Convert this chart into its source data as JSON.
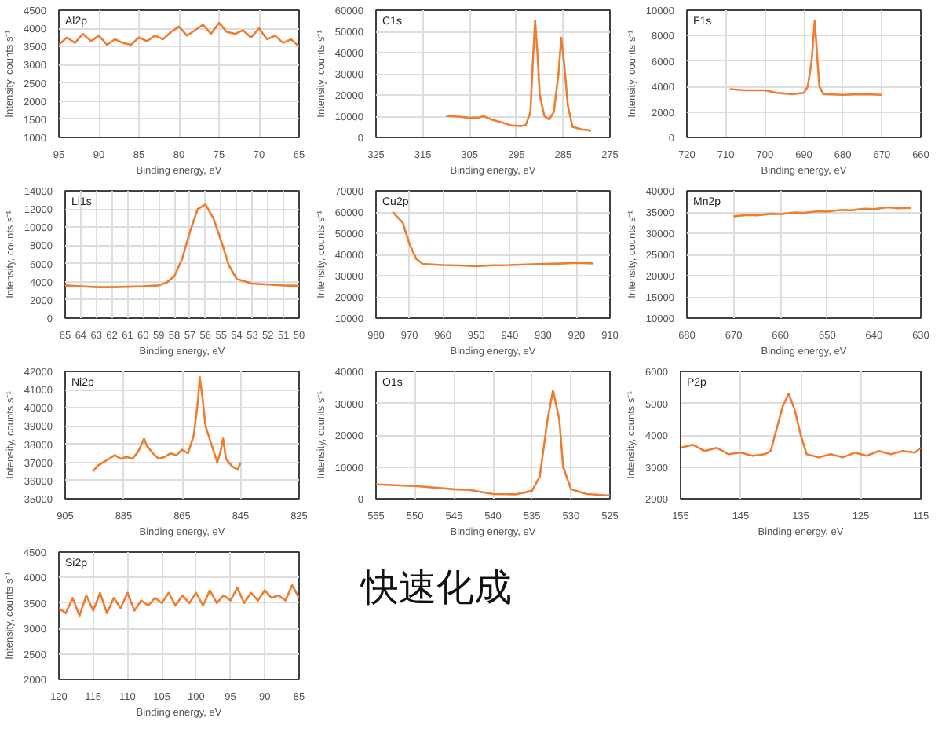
{
  "chart_data": [
    {
      "type": "line",
      "annotations": [
        "Al2p"
      ],
      "xlabel": "Binding energy, eV",
      "ylabel": "Intensity, counts s⁻¹",
      "grid": true,
      "xlim": [
        95,
        65
      ],
      "xticks": [
        95,
        90,
        85,
        80,
        75,
        70,
        65
      ],
      "ylim": [
        1000,
        4500
      ],
      "yticks": [
        1000,
        1500,
        2000,
        2500,
        3000,
        3500,
        4000,
        4500
      ],
      "x": [
        95,
        94,
        93,
        92,
        91,
        90,
        89,
        88,
        87,
        86,
        85,
        84,
        83,
        82,
        81,
        80,
        79,
        78,
        77,
        76,
        75,
        74,
        73,
        72,
        71,
        70,
        69,
        68,
        67,
        66,
        65
      ],
      "series": [
        {
          "color": "#ed7d31",
          "values": [
            3550,
            3750,
            3600,
            3850,
            3650,
            3800,
            3550,
            3700,
            3600,
            3550,
            3750,
            3650,
            3800,
            3700,
            3900,
            4050,
            3800,
            3950,
            4100,
            3850,
            4150,
            3900,
            3850,
            3950,
            3750,
            4000,
            3700,
            3800,
            3600,
            3700,
            3500
          ]
        }
      ]
    },
    {
      "type": "line",
      "annotations": [
        "C1s"
      ],
      "xlabel": "Binding energy, eV",
      "ylabel": "Intensity, counts s⁻¹",
      "grid": true,
      "xlim": [
        325,
        275
      ],
      "xticks": [
        325,
        315,
        305,
        295,
        285,
        275
      ],
      "ylim": [
        0,
        60000
      ],
      "yticks": [
        0,
        10000,
        20000,
        30000,
        40000,
        50000,
        60000
      ],
      "x": [
        310,
        307,
        305,
        303,
        302,
        300,
        298,
        296,
        294,
        293,
        292,
        291.5,
        291,
        290.5,
        290,
        289,
        288,
        287,
        286,
        285.4,
        284.8,
        284,
        283,
        281,
        279
      ],
      "series": [
        {
          "color": "#ed7d31",
          "values": [
            10200,
            9700,
            9200,
            9400,
            10000,
            8200,
            7000,
            5600,
            5400,
            5800,
            12000,
            35000,
            55000,
            40000,
            20000,
            10000,
            8500,
            12000,
            30000,
            47000,
            35000,
            15000,
            5000,
            3800,
            3200
          ]
        }
      ]
    },
    {
      "type": "line",
      "annotations": [
        "F1s"
      ],
      "xlabel": "Binding energy, eV",
      "ylabel": "Intensity, counts s⁻¹",
      "grid": true,
      "xlim": [
        720,
        660
      ],
      "xticks": [
        720,
        710,
        700,
        690,
        680,
        670,
        660
      ],
      "ylim": [
        0,
        10000
      ],
      "yticks": [
        0,
        2000,
        4000,
        6000,
        8000,
        10000
      ],
      "x": [
        709,
        705,
        700,
        697,
        693,
        690,
        689,
        688,
        687.2,
        686.5,
        686,
        685,
        680,
        675,
        670
      ],
      "series": [
        {
          "color": "#ed7d31",
          "values": [
            3800,
            3700,
            3700,
            3500,
            3400,
            3500,
            4000,
            6000,
            9200,
            6000,
            4000,
            3400,
            3350,
            3400,
            3350
          ]
        }
      ]
    },
    {
      "type": "line",
      "annotations": [
        "Li1s"
      ],
      "xlabel": "Binding energy, eV",
      "ylabel": "Intensity, counts s⁻¹",
      "grid": true,
      "xlim": [
        65,
        50
      ],
      "xticks": [
        65,
        64,
        63,
        62,
        61,
        60,
        59,
        58,
        57,
        56,
        55,
        54,
        53,
        52,
        51,
        50
      ],
      "ylim": [
        0,
        14000
      ],
      "yticks": [
        0,
        2000,
        4000,
        6000,
        8000,
        10000,
        12000,
        14000
      ],
      "x": [
        65,
        64,
        63,
        62,
        61,
        60,
        59,
        58.5,
        58,
        57.5,
        57,
        56.5,
        56,
        55.5,
        55,
        54.5,
        54,
        53,
        52,
        51,
        50
      ],
      "series": [
        {
          "color": "#ed7d31",
          "values": [
            3600,
            3500,
            3400,
            3400,
            3450,
            3500,
            3600,
            3900,
            4600,
            6500,
            9500,
            12000,
            12500,
            11000,
            8500,
            5800,
            4300,
            3800,
            3700,
            3600,
            3550
          ]
        }
      ]
    },
    {
      "type": "line",
      "annotations": [
        "Cu2p"
      ],
      "xlabel": "Binding energy, eV",
      "ylabel": "Intensity, counts s⁻¹",
      "grid": true,
      "xlim": [
        980,
        910
      ],
      "xticks": [
        980,
        970,
        960,
        950,
        940,
        930,
        920,
        910
      ],
      "ylim": [
        10000,
        70000
      ],
      "yticks": [
        10000,
        20000,
        30000,
        40000,
        50000,
        60000,
        70000
      ],
      "x": [
        975,
        972,
        970,
        968,
        966,
        960,
        955,
        950,
        945,
        940,
        935,
        930,
        925,
        920,
        915
      ],
      "series": [
        {
          "color": "#ed7d31",
          "values": [
            60000,
            55000,
            45000,
            38000,
            35500,
            35000,
            34800,
            34500,
            34900,
            35000,
            35300,
            35500,
            35700,
            36000,
            35800
          ]
        }
      ]
    },
    {
      "type": "line",
      "annotations": [
        "Mn2p"
      ],
      "xlabel": "Binding energy, eV",
      "ylabel": "Intensity, counts s⁻¹",
      "grid": true,
      "xlim": [
        680,
        630
      ],
      "xticks": [
        680,
        670,
        660,
        650,
        640,
        630
      ],
      "ylim": [
        10000,
        40000
      ],
      "yticks": [
        10000,
        15000,
        20000,
        25000,
        30000,
        35000,
        40000
      ],
      "x": [
        670,
        667,
        665,
        662,
        660,
        657,
        655,
        652,
        650,
        647,
        645,
        642,
        640,
        637,
        635,
        632
      ],
      "series": [
        {
          "color": "#ed7d31",
          "values": [
            34000,
            34300,
            34200,
            34600,
            34500,
            34900,
            34800,
            35200,
            35100,
            35500,
            35400,
            35800,
            35700,
            36100,
            35900,
            36000
          ]
        }
      ]
    },
    {
      "type": "line",
      "annotations": [
        "Ni2p"
      ],
      "xlabel": "Binding energy, eV",
      "ylabel": "Intensity, counts s⁻¹",
      "grid": true,
      "xlim": [
        905,
        825
      ],
      "xticks": [
        905,
        885,
        865,
        845,
        825
      ],
      "ylim": [
        35000,
        42000
      ],
      "yticks": [
        35000,
        36000,
        37000,
        38000,
        39000,
        40000,
        41000,
        42000
      ],
      "x": [
        895.5,
        894,
        892,
        890,
        888,
        886,
        884,
        882,
        880,
        878,
        877,
        875,
        873,
        871,
        869,
        867,
        865,
        863,
        861,
        859.5,
        859,
        858,
        857,
        855,
        853,
        852,
        851,
        850,
        848,
        846,
        845
      ],
      "series": [
        {
          "color": "#ed7d31",
          "values": [
            36500,
            36800,
            37000,
            37200,
            37400,
            37200,
            37300,
            37200,
            37600,
            38300,
            37900,
            37500,
            37200,
            37300,
            37500,
            37400,
            37700,
            37500,
            38500,
            40500,
            41700,
            40500,
            39000,
            38000,
            37000,
            37500,
            38300,
            37200,
            36800,
            36600,
            37000
          ]
        }
      ]
    },
    {
      "type": "line",
      "annotations": [
        "O1s"
      ],
      "xlabel": "Binding energy, eV",
      "ylabel": "Intensity, counts s⁻¹",
      "grid": true,
      "xlim": [
        555,
        525
      ],
      "xticks": [
        555,
        550,
        545,
        540,
        535,
        530,
        525
      ],
      "ylim": [
        0,
        40000
      ],
      "yticks": [
        0,
        10000,
        20000,
        30000,
        40000
      ],
      "x": [
        555,
        550,
        545,
        543,
        540,
        537,
        535,
        534,
        533,
        532.3,
        531.5,
        531,
        530,
        528,
        525
      ],
      "series": [
        {
          "color": "#ed7d31",
          "values": [
            4500,
            4000,
            3000,
            2800,
            1500,
            1400,
            2500,
            7000,
            25000,
            34000,
            25000,
            10000,
            3000,
            1500,
            1000
          ]
        }
      ]
    },
    {
      "type": "line",
      "annotations": [
        "P2p"
      ],
      "xlabel": "Binding energy, eV",
      "ylabel": "Intensity, counts s⁻¹",
      "grid": true,
      "xlim": [
        155,
        115
      ],
      "xticks": [
        155,
        145,
        135,
        125,
        115
      ],
      "ylim": [
        2000,
        6000
      ],
      "yticks": [
        2000,
        3000,
        4000,
        5000,
        6000
      ],
      "x": [
        155,
        153,
        151,
        149,
        147,
        145,
        143,
        141,
        140,
        139,
        138,
        137,
        136,
        135,
        134,
        132,
        130,
        128,
        126,
        124,
        122,
        120,
        118,
        116,
        115
      ],
      "series": [
        {
          "color": "#ed7d31",
          "values": [
            3600,
            3700,
            3500,
            3600,
            3400,
            3450,
            3350,
            3400,
            3500,
            4200,
            4900,
            5300,
            4800,
            4000,
            3400,
            3300,
            3400,
            3300,
            3450,
            3350,
            3500,
            3400,
            3500,
            3450,
            3600
          ]
        }
      ]
    },
    {
      "type": "line",
      "annotations": [
        "Si2p"
      ],
      "xlabel": "Binding energy, eV",
      "ylabel": "Intensity, counts s⁻¹",
      "grid": true,
      "xlim": [
        120,
        85
      ],
      "xticks": [
        120,
        115,
        110,
        105,
        100,
        95,
        90,
        85
      ],
      "ylim": [
        2000,
        4500
      ],
      "yticks": [
        2000,
        2500,
        3000,
        3500,
        4000,
        4500
      ],
      "x": [
        120,
        119,
        118,
        117,
        116,
        115,
        114,
        113,
        112,
        111,
        110,
        109,
        108,
        107,
        106,
        105,
        104,
        103,
        102,
        101,
        100,
        99,
        98,
        97,
        96,
        95,
        94,
        93,
        92,
        91,
        90,
        89,
        88,
        87,
        86,
        85
      ],
      "series": [
        {
          "color": "#ed7d31",
          "values": [
            3400,
            3300,
            3600,
            3250,
            3650,
            3350,
            3700,
            3300,
            3600,
            3400,
            3700,
            3350,
            3550,
            3450,
            3600,
            3500,
            3700,
            3450,
            3650,
            3500,
            3700,
            3450,
            3750,
            3500,
            3650,
            3550,
            3800,
            3500,
            3700,
            3550,
            3750,
            3600,
            3650,
            3550,
            3850,
            3600
          ]
        }
      ]
    },
    {
      "type": "other",
      "annotations": [
        "快速化成"
      ]
    }
  ]
}
